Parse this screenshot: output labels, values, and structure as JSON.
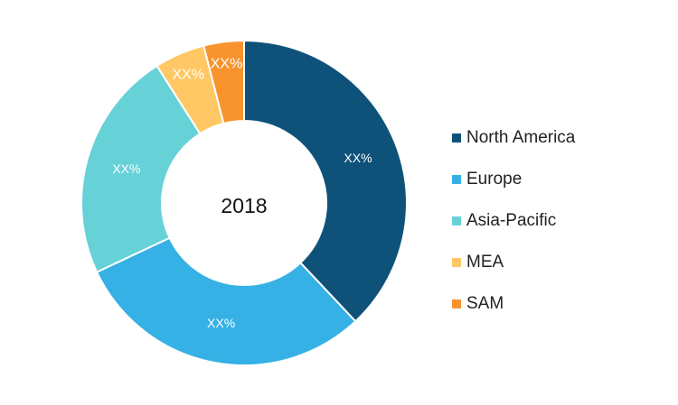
{
  "chart_data": {
    "type": "pie",
    "donut": true,
    "center_label": "2018",
    "slices": [
      {
        "name": "North America",
        "value": 38,
        "label": "XX%",
        "color": "#0E527A"
      },
      {
        "name": "Europe",
        "value": 30,
        "label": "XX%",
        "color": "#35B1E5"
      },
      {
        "name": "Asia-Pacific",
        "value": 23,
        "label": "XX%",
        "color": "#67D1D8"
      },
      {
        "name": "MEA",
        "value": 5,
        "label": "XX%",
        "color": "#FFC864"
      },
      {
        "name": "SAM",
        "value": 4,
        "label": "XX%",
        "color": "#F7942E"
      }
    ],
    "legend_position": "right"
  }
}
